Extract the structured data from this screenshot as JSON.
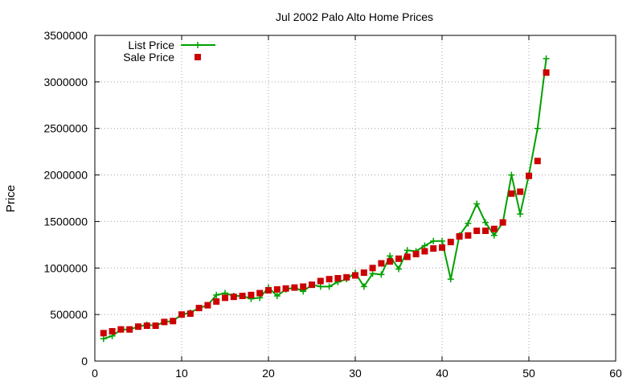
{
  "chart_data": {
    "type": "line",
    "title": "Jul 2002 Palo Alto Home Prices",
    "xlabel": "",
    "ylabel": "Price",
    "xlim": [
      0,
      60
    ],
    "ylim": [
      0,
      3500000
    ],
    "xticks": [
      0,
      10,
      20,
      30,
      40,
      50,
      60
    ],
    "yticks": [
      0,
      500000,
      1000000,
      1500000,
      2000000,
      2500000,
      3000000,
      3500000
    ],
    "grid": true,
    "legend_position": "top-left",
    "series": [
      {
        "name": "List Price",
        "style": "line-plus",
        "color": "#00a000",
        "x": [
          1,
          2,
          3,
          4,
          5,
          6,
          7,
          8,
          9,
          10,
          11,
          12,
          13,
          14,
          15,
          16,
          17,
          18,
          19,
          20,
          21,
          22,
          23,
          24,
          25,
          26,
          27,
          28,
          29,
          30,
          31,
          32,
          33,
          34,
          35,
          36,
          37,
          38,
          39,
          40,
          41,
          42,
          43,
          44,
          45,
          46,
          47,
          48,
          49,
          50,
          51,
          52
        ],
        "values": [
          240000,
          270000,
          340000,
          340000,
          370000,
          390000,
          380000,
          420000,
          430000,
          500000,
          520000,
          570000,
          600000,
          710000,
          730000,
          700000,
          700000,
          670000,
          680000,
          790000,
          700000,
          770000,
          790000,
          750000,
          820000,
          800000,
          800000,
          850000,
          880000,
          950000,
          800000,
          940000,
          930000,
          1130000,
          990000,
          1190000,
          1180000,
          1240000,
          1290000,
          1290000,
          880000,
          1350000,
          1480000,
          1690000,
          1490000,
          1350000,
          1490000,
          2000000,
          1580000,
          2000000,
          2500000,
          3250000
        ]
      },
      {
        "name": "Sale Price",
        "style": "square",
        "color": "#cc0000",
        "x": [
          1,
          2,
          3,
          4,
          5,
          6,
          7,
          8,
          9,
          10,
          11,
          12,
          13,
          14,
          15,
          16,
          17,
          18,
          19,
          20,
          21,
          22,
          23,
          24,
          25,
          26,
          27,
          28,
          29,
          30,
          31,
          32,
          33,
          34,
          35,
          36,
          37,
          38,
          39,
          40,
          41,
          42,
          43,
          44,
          45,
          46,
          47,
          48,
          49,
          50,
          51,
          52
        ],
        "values": [
          300000,
          320000,
          340000,
          340000,
          370000,
          380000,
          380000,
          420000,
          430000,
          500000,
          510000,
          570000,
          600000,
          640000,
          680000,
          690000,
          700000,
          710000,
          730000,
          760000,
          770000,
          780000,
          790000,
          800000,
          820000,
          860000,
          880000,
          890000,
          900000,
          920000,
          950000,
          1000000,
          1050000,
          1070000,
          1100000,
          1120000,
          1150000,
          1180000,
          1210000,
          1220000,
          1280000,
          1340000,
          1350000,
          1400000,
          1400000,
          1420000,
          1490000,
          1800000,
          1820000,
          1990000,
          2150000,
          3100000
        ]
      }
    ]
  }
}
